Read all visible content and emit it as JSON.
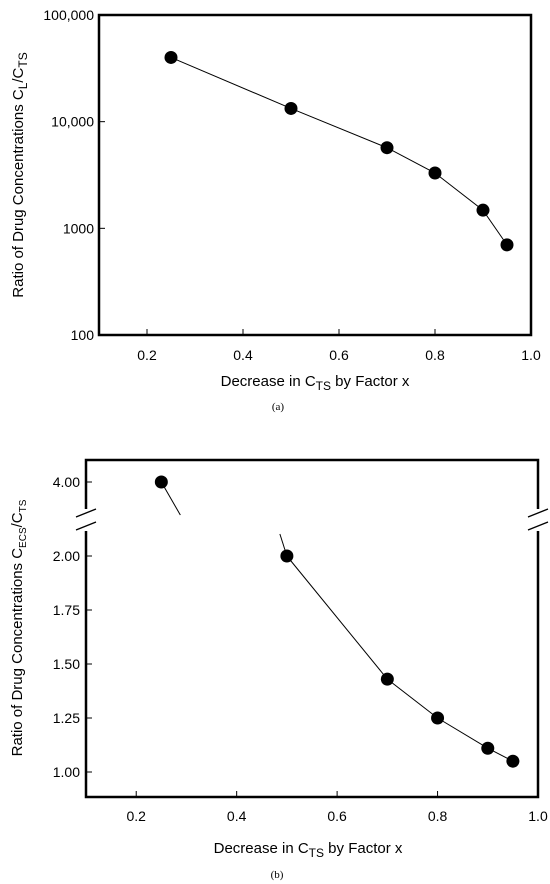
{
  "chart_data": [
    {
      "type": "line",
      "panel": "a",
      "caption": "(a)",
      "yscale": "log",
      "xlim": [
        0.1,
        1.0
      ],
      "ylim": [
        100,
        100000
      ],
      "xticks": [
        0.2,
        0.4,
        0.6,
        0.8,
        1.0
      ],
      "xtick_labels": [
        "0.2",
        "0.4",
        "0.6",
        "0.8",
        "1.0"
      ],
      "yticks": [
        100,
        1000,
        10000,
        100000
      ],
      "ytick_labels": [
        "100",
        "1000",
        "10,000",
        "100,000"
      ],
      "xlabel_pre": "Decrease in C",
      "xlabel_sub": "TS",
      "xlabel_post": " by Factor x",
      "ylabel_pre": "Ratio of Drug Concentrations C",
      "ylabel_sub": "L",
      "ylabel_mid": "/C",
      "ylabel_sub2": "TS",
      "grid": false,
      "markers": "filled-circle",
      "series": [
        {
          "x": [
            0.25,
            0.5,
            0.7,
            0.8,
            0.9,
            0.95
          ],
          "y": [
            40000,
            13300,
            5700,
            3300,
            1480,
            700
          ]
        }
      ]
    },
    {
      "type": "line",
      "panel": "b",
      "caption": "(b)",
      "yscale": "broken-linear",
      "xlim": [
        0.1,
        1.0
      ],
      "ylim": [
        0.95,
        4.05
      ],
      "y_break_between": [
        2.0,
        4.0
      ],
      "xticks": [
        0.2,
        0.4,
        0.6,
        0.8,
        1.0
      ],
      "xtick_labels": [
        "0.2",
        "0.4",
        "0.6",
        "0.8",
        "1.0"
      ],
      "yticks": [
        1.0,
        1.25,
        1.5,
        1.75,
        2.0,
        4.0
      ],
      "ytick_labels": [
        "1.00",
        "1.25",
        "1.50",
        "1.75",
        "2.00",
        "4.00"
      ],
      "xlabel_pre": "Decrease in C",
      "xlabel_sub": "TS",
      "xlabel_post": " by Factor x",
      "ylabel_pre": "Ratio of Drug Concentrations C",
      "ylabel_sub": "ECS",
      "ylabel_mid": "/C",
      "ylabel_sub2": "TS",
      "grid": false,
      "markers": "filled-circle",
      "series": [
        {
          "x": [
            0.25,
            0.5,
            0.7,
            0.8,
            0.9,
            0.95
          ],
          "y": [
            4.0,
            2.0,
            1.43,
            1.25,
            1.11,
            1.05
          ]
        }
      ]
    }
  ]
}
